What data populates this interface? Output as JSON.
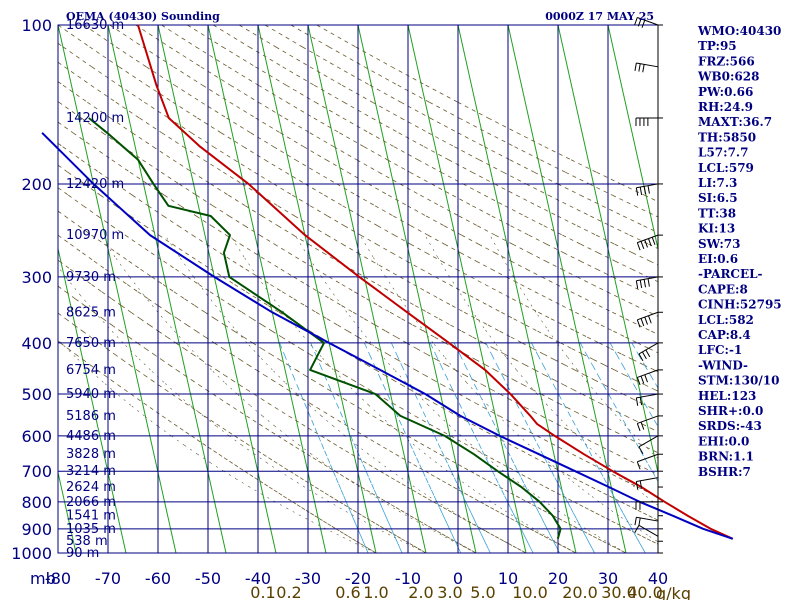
{
  "chart_data": {
    "type": "line",
    "title": "OEMA (40430) Sounding",
    "valid_time": "0000Z 17 MAY 25",
    "pressure_unit": "mb",
    "mixing_ratio_unit": "g/kg",
    "pressure_levels": [
      100,
      200,
      300,
      400,
      500,
      600,
      700,
      800,
      900,
      1000
    ],
    "temperature_ticks": [
      -80,
      -70,
      -60,
      -50,
      -40,
      -30,
      -20,
      -10,
      0,
      10,
      20,
      30,
      40
    ],
    "mixing_ratio_labels": [
      "0.1",
      "0.2",
      "0.6",
      "1.0",
      "2.0",
      "3.0",
      "5.0",
      "10.0",
      "20.0",
      "30.0",
      "40.0"
    ],
    "height_labels": [
      {
        "p": 100,
        "text": "16630 m"
      },
      {
        "p": 150,
        "text": "14200 m"
      },
      {
        "p": 200,
        "text": "12420 m"
      },
      {
        "p": 250,
        "text": "10970 m"
      },
      {
        "p": 300,
        "text": "9730 m"
      },
      {
        "p": 350,
        "text": "8625 m"
      },
      {
        "p": 400,
        "text": "7650 m"
      },
      {
        "p": 450,
        "text": "6754 m"
      },
      {
        "p": 500,
        "text": "5940 m"
      },
      {
        "p": 550,
        "text": "5186 m"
      },
      {
        "p": 600,
        "text": "4486 m"
      },
      {
        "p": 650,
        "text": "3828 m"
      },
      {
        "p": 700,
        "text": "3214 m"
      },
      {
        "p": 750,
        "text": "2624 m"
      },
      {
        "p": 800,
        "text": "2066 m"
      },
      {
        "p": 850,
        "text": "1541 m"
      },
      {
        "p": 900,
        "text": "1035 m"
      },
      {
        "p": 950,
        "text": "538 m"
      },
      {
        "p": 1000,
        "text": "90 m"
      }
    ],
    "series": [
      {
        "name": "",
        "color": "#c00000",
        "points": [
          [
            940,
            32
          ],
          [
            900,
            28
          ],
          [
            850,
            24
          ],
          [
            800,
            20
          ],
          [
            750,
            16
          ],
          [
            700,
            11
          ],
          [
            650,
            6
          ],
          [
            600,
            1
          ],
          [
            570,
            -2
          ],
          [
            550,
            -3
          ],
          [
            500,
            -6
          ],
          [
            450,
            -10
          ],
          [
            400,
            -16
          ],
          [
            350,
            -23
          ],
          [
            300,
            -31
          ],
          [
            250,
            -40
          ],
          [
            200,
            -49
          ],
          [
            170,
            -57
          ],
          [
            150,
            -62
          ],
          [
            130,
            -63
          ],
          [
            100,
            -64
          ]
        ]
      },
      {
        "name": "",
        "color": "#005000",
        "points": [
          [
            940,
            -3
          ],
          [
            900,
            -2
          ],
          [
            850,
            -3
          ],
          [
            800,
            -5
          ],
          [
            750,
            -8
          ],
          [
            700,
            -12
          ],
          [
            650,
            -16
          ],
          [
            600,
            -21
          ],
          [
            550,
            -29
          ],
          [
            500,
            -33
          ],
          [
            450,
            -45
          ],
          [
            400,
            -41
          ],
          [
            350,
            -48
          ],
          [
            300,
            -57
          ],
          [
            270,
            -57
          ],
          [
            250,
            -55
          ],
          [
            230,
            -58
          ],
          [
            220,
            -66
          ],
          [
            200,
            -68
          ],
          [
            180,
            -70
          ],
          [
            160,
            -75
          ],
          [
            150,
            -78
          ]
        ]
      },
      {
        "name": "",
        "color": "#0000c0",
        "points": [
          [
            940,
            32
          ],
          [
            900,
            26.5
          ],
          [
            850,
            21
          ],
          [
            800,
            15
          ],
          [
            750,
            9.5
          ],
          [
            700,
            3.5
          ],
          [
            650,
            -3
          ],
          [
            600,
            -10
          ],
          [
            550,
            -17
          ],
          [
            500,
            -23
          ],
          [
            450,
            -31
          ],
          [
            400,
            -40
          ],
          [
            350,
            -50
          ],
          [
            300,
            -60
          ],
          [
            250,
            -71
          ],
          [
            200,
            -80
          ],
          [
            160,
            -88
          ]
        ]
      }
    ],
    "winds": [
      {
        "p": 930,
        "dir": 300,
        "spd": 10
      },
      {
        "p": 870,
        "dir": 280,
        "spd": 15
      },
      {
        "p": 800,
        "dir": 270,
        "spd": 20
      },
      {
        "p": 720,
        "dir": 260,
        "spd": 15
      },
      {
        "p": 650,
        "dir": 250,
        "spd": 10
      },
      {
        "p": 600,
        "dir": 240,
        "spd": 10
      },
      {
        "p": 550,
        "dir": 250,
        "spd": 15
      },
      {
        "p": 500,
        "dir": 260,
        "spd": 20
      },
      {
        "p": 450,
        "dir": 250,
        "spd": 25
      },
      {
        "p": 400,
        "dir": 240,
        "spd": 30
      },
      {
        "p": 350,
        "dir": 250,
        "spd": 35
      },
      {
        "p": 300,
        "dir": 260,
        "spd": 40
      },
      {
        "p": 250,
        "dir": 250,
        "spd": 45
      },
      {
        "p": 200,
        "dir": 260,
        "spd": 40
      },
      {
        "p": 150,
        "dir": 270,
        "spd": 35
      },
      {
        "p": 120,
        "dir": 280,
        "spd": 30
      },
      {
        "p": 100,
        "dir": 290,
        "spd": 25
      }
    ]
  },
  "indices": [
    "WMO:40430",
    "TP:95",
    "FRZ:566",
    "WB0:628",
    "PW:0.66",
    "RH:24.9",
    "MAXT:36.7",
    "TH:5850",
    "L57:7.7",
    "LCL:579",
    "LI:7.3",
    "SI:6.5",
    "TT:38",
    "KI:13",
    "SW:73",
    "EI:0.6",
    "-PARCEL-",
    "CAPE:8",
    "CINH:52795",
    "LCL:582",
    "CAP:8.4",
    "LFC:-1",
    "-WIND-",
    "STM:130/10",
    "HEL:123",
    "SHR+:0.0",
    "SRDS:-43",
    "EHI:0.0",
    "BRN:1.1",
    "BSHR:7"
  ]
}
